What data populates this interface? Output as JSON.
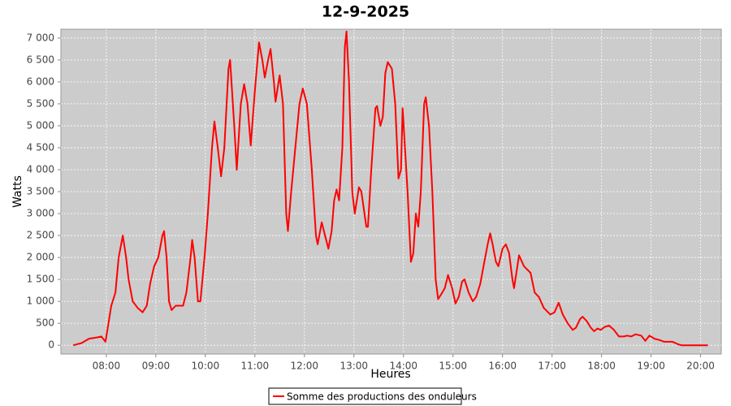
{
  "chart_data": {
    "type": "line",
    "title": "12-9-2025",
    "x_label": "Heures",
    "y_label": "Watts",
    "x": [
      "07:20",
      "07:30",
      "07:39",
      "07:49",
      "07:54",
      "07:59",
      "08:06",
      "08:11",
      "08:15",
      "08:20",
      "08:24",
      "08:27",
      "08:32",
      "08:38",
      "08:44",
      "08:49",
      "08:53",
      "08:58",
      "09:03",
      "09:08",
      "09:10",
      "09:13",
      "09:16",
      "09:19",
      "09:24",
      "09:33",
      "09:37",
      "09:42",
      "09:44",
      "09:47",
      "09:51",
      "09:54",
      "09:59",
      "10:03",
      "10:08",
      "10:11",
      "10:15",
      "10:19",
      "10:23",
      "10:28",
      "10:30",
      "10:35",
      "10:38",
      "10:43",
      "10:47",
      "10:51",
      "10:55",
      "11:00",
      "11:05",
      "11:09",
      "11:12",
      "11:16",
      "11:19",
      "11:23",
      "11:25",
      "11:30",
      "11:34",
      "11:38",
      "11:40",
      "11:44",
      "11:49",
      "11:54",
      "11:58",
      "12:03",
      "12:09",
      "12:14",
      "12:16",
      "12:21",
      "12:25",
      "12:29",
      "12:33",
      "12:36",
      "12:39",
      "12:42",
      "12:46",
      "12:49",
      "12:51",
      "12:54",
      "12:58",
      "13:01",
      "13:06",
      "13:09",
      "13:15",
      "13:17",
      "13:21",
      "13:26",
      "13:28",
      "13:32",
      "13:35",
      "13:38",
      "13:41",
      "13:46",
      "13:50",
      "13:54",
      "13:57",
      "13:59",
      "14:05",
      "14:09",
      "14:12",
      "14:15",
      "14:18",
      "14:21",
      "14:25",
      "14:27",
      "14:31",
      "14:35",
      "14:39",
      "14:42",
      "14:47",
      "14:50",
      "14:54",
      "14:59",
      "15:03",
      "15:07",
      "15:11",
      "15:14",
      "15:19",
      "15:24",
      "15:28",
      "15:33",
      "15:37",
      "15:42",
      "15:45",
      "15:48",
      "15:52",
      "15:55",
      "16:00",
      "16:04",
      "16:08",
      "16:12",
      "16:14",
      "16:18",
      "16:20",
      "16:26",
      "16:34",
      "16:39",
      "16:44",
      "16:50",
      "16:58",
      "17:03",
      "17:08",
      "17:13",
      "17:19",
      "17:25",
      "17:29",
      "17:34",
      "17:37",
      "17:42",
      "17:47",
      "17:51",
      "17:55",
      "17:59",
      "18:04",
      "18:09",
      "18:15",
      "18:21",
      "18:27",
      "18:31",
      "18:36",
      "18:41",
      "18:48",
      "18:53",
      "18:58",
      "19:04",
      "19:10",
      "19:16",
      "19:26",
      "19:33",
      "19:37",
      "20:09"
    ],
    "series": [
      {
        "name": "Somme des productions des onduleurs",
        "color": "#ff0000",
        "values": [
          0,
          50,
          150,
          180,
          200,
          80,
          900,
          1200,
          2000,
          2500,
          2000,
          1500,
          1000,
          850,
          750,
          900,
          1400,
          1800,
          2000,
          2500,
          2600,
          2000,
          1000,
          800,
          900,
          900,
          1200,
          2000,
          2400,
          2000,
          1000,
          1000,
          2000,
          3000,
          4500,
          5100,
          4500,
          3850,
          4500,
          6300,
          6500,
          5000,
          4000,
          5500,
          5950,
          5500,
          4550,
          5800,
          6900,
          6500,
          6100,
          6500,
          6750,
          6000,
          5550,
          6150,
          5500,
          3000,
          2600,
          3500,
          4500,
          5500,
          5850,
          5500,
          4000,
          2500,
          2300,
          2800,
          2500,
          2200,
          2600,
          3300,
          3550,
          3300,
          4500,
          6800,
          7150,
          6000,
          3500,
          3000,
          3600,
          3500,
          2700,
          2700,
          4000,
          5400,
          5450,
          5000,
          5200,
          6200,
          6450,
          6300,
          5500,
          3800,
          4000,
          5400,
          3500,
          1900,
          2100,
          3000,
          2700,
          3500,
          5500,
          5650,
          5000,
          3500,
          1500,
          1050,
          1200,
          1300,
          1600,
          1300,
          950,
          1100,
          1450,
          1500,
          1200,
          1000,
          1100,
          1400,
          1800,
          2300,
          2550,
          2300,
          1900,
          1800,
          2200,
          2300,
          2100,
          1500,
          1300,
          1800,
          2050,
          1800,
          1650,
          1200,
          1100,
          850,
          700,
          750,
          970,
          700,
          500,
          350,
          400,
          600,
          650,
          550,
          400,
          320,
          380,
          350,
          420,
          450,
          350,
          200,
          200,
          220,
          200,
          250,
          220,
          100,
          220,
          150,
          120,
          80,
          80,
          20,
          0,
          0
        ]
      }
    ],
    "xlim": [
      "07:05",
      "20:25"
    ],
    "xticks": [
      "08:00",
      "09:00",
      "10:00",
      "11:00",
      "12:00",
      "13:00",
      "14:00",
      "15:00",
      "16:00",
      "17:00",
      "18:00",
      "19:00",
      "20:00"
    ],
    "ylim": [
      -200,
      7200
    ],
    "yticks": [
      0,
      500,
      {
        "value": 1000,
        "label": "1 000"
      },
      {
        "value": 1500,
        "label": "1 500"
      },
      {
        "value": 2000,
        "label": "2 000"
      },
      {
        "value": 2500,
        "label": "2 500"
      },
      {
        "value": 3000,
        "label": "3 000"
      },
      {
        "value": 3500,
        "label": "3 500"
      },
      {
        "value": 4000,
        "label": "4 000"
      },
      {
        "value": 4500,
        "label": "4 500"
      },
      {
        "value": 5000,
        "label": "5 000"
      },
      {
        "value": 5500,
        "label": "5 500"
      },
      {
        "value": 6000,
        "label": "6 000"
      },
      {
        "value": 6500,
        "label": "6 500"
      },
      {
        "value": 7000,
        "label": "7 000"
      }
    ],
    "grid": true,
    "legend": "bottom"
  }
}
